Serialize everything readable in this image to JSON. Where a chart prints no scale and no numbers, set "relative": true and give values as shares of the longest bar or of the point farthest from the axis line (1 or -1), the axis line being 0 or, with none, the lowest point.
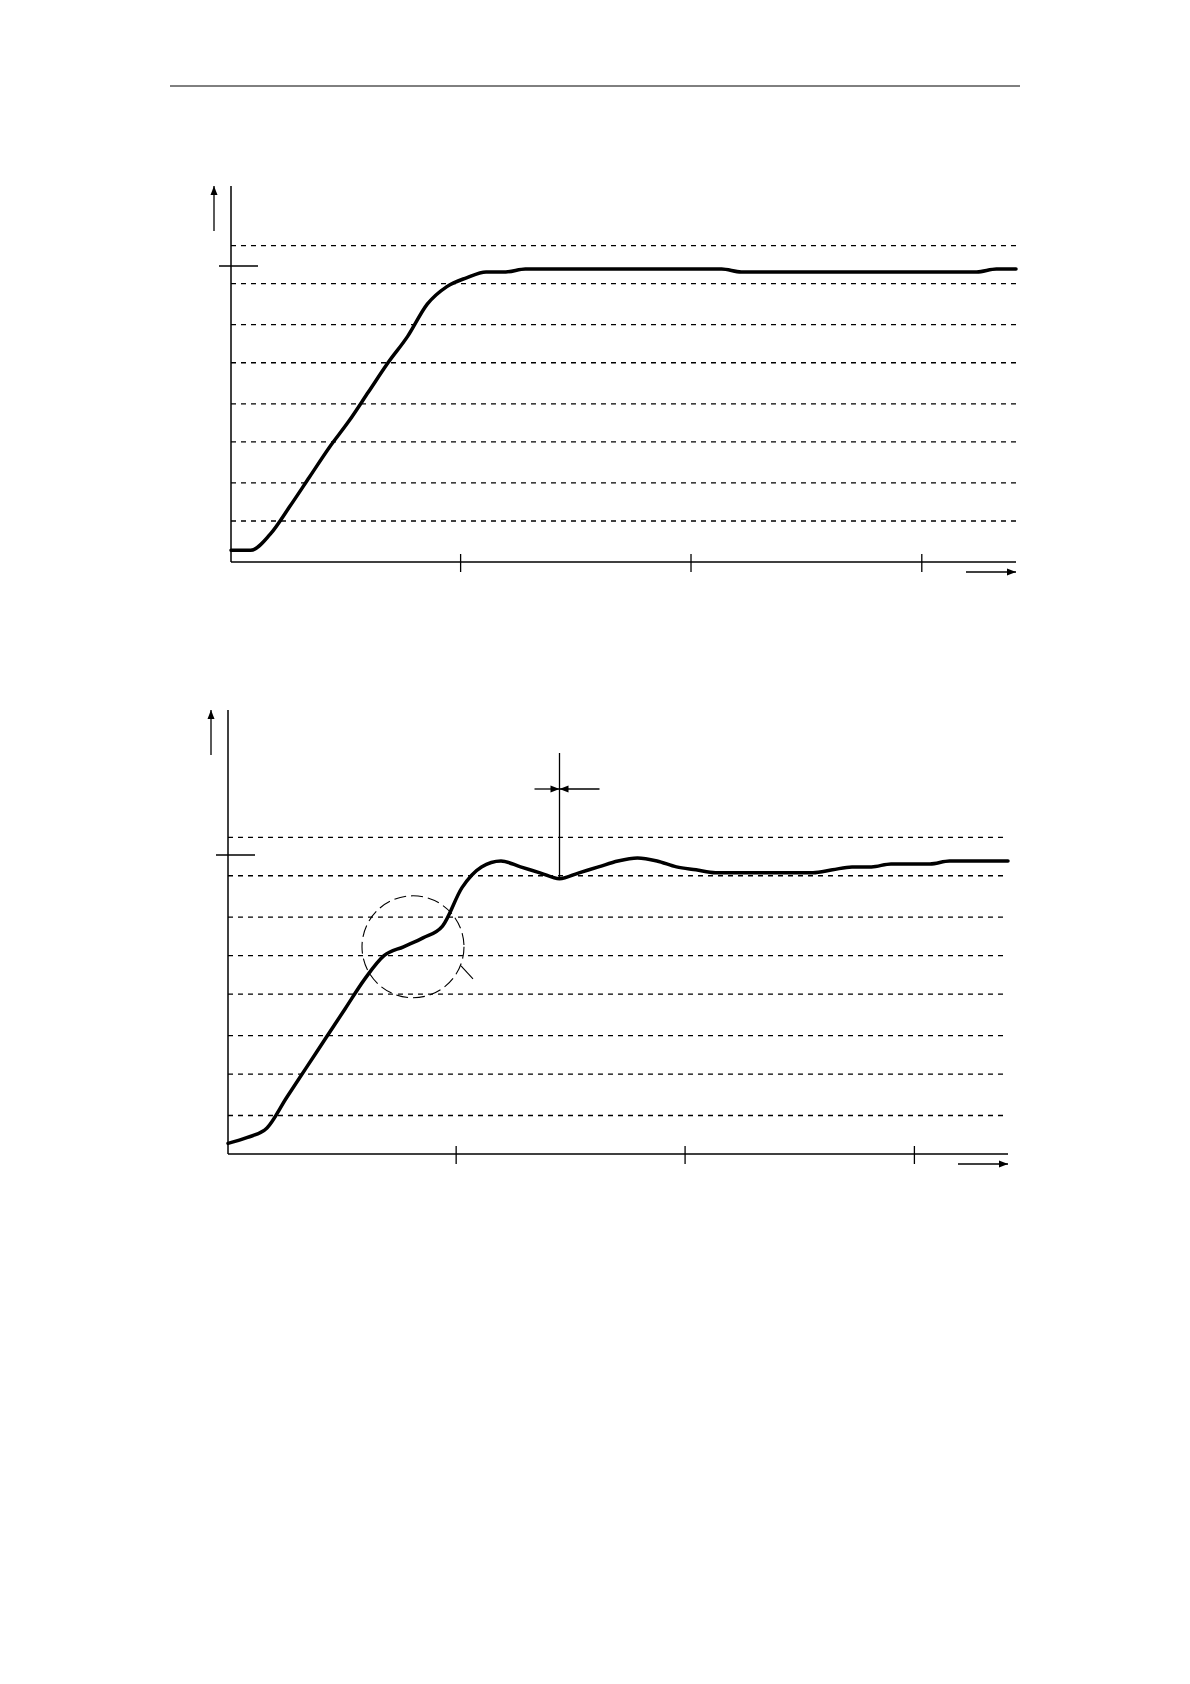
{
  "chart_data": [
    {
      "type": "line",
      "relative": true,
      "line_style": "solid",
      "categories": [
        null,
        null,
        null,
        null,
        null,
        null,
        null,
        null,
        null,
        null,
        null,
        null,
        null,
        null,
        null,
        null,
        null,
        null,
        null,
        null,
        null,
        null,
        null,
        null,
        null,
        null,
        null,
        null,
        null,
        null,
        null,
        null,
        null,
        null,
        null,
        null,
        null,
        null,
        null,
        null,
        null
      ],
      "series": [
        {
          "color": "#000000",
          "values": [
            0.04,
            0.04,
            0.095,
            0.19,
            0.29,
            0.39,
            0.48,
            0.58,
            0.68,
            0.77,
            0.88,
            0.94,
            0.97,
            0.99,
            0.99,
            1,
            1,
            1,
            1,
            1,
            1,
            1,
            1,
            1,
            1,
            1,
            0.99,
            0.99,
            0.99,
            0.99,
            0.99,
            0.99,
            0.99,
            0.99,
            0.99,
            0.99,
            0.99,
            0.99,
            0.99,
            1,
            1
          ]
        }
      ],
      "ref_lines": [
        {
          "axis": "y",
          "value": 1.08,
          "line_style": "dashed",
          "color": "#000000"
        },
        {
          "axis": "y",
          "value": 0.95,
          "line_style": "dashed",
          "color": "#000000"
        },
        {
          "axis": "y",
          "value": 0.81,
          "line_style": "dashed",
          "color": "#000000"
        },
        {
          "axis": "y",
          "value": 0.68,
          "line_style": "dashed",
          "color": "#000000"
        },
        {
          "axis": "y",
          "value": 0.54,
          "line_style": "dashed",
          "color": "#000000"
        },
        {
          "axis": "y",
          "value": 0.41,
          "line_style": "dashed",
          "color": "#000000"
        },
        {
          "axis": "y",
          "value": 0.27,
          "line_style": "dashed",
          "color": "#000000"
        },
        {
          "axis": "y",
          "value": 0.14,
          "line_style": "dashed",
          "color": "#000000"
        }
      ]
    },
    {
      "type": "line",
      "relative": true,
      "line_style": "solid",
      "categories": [
        null,
        null,
        null,
        null,
        null,
        null,
        null,
        null,
        null,
        null,
        null,
        null,
        null,
        null,
        null,
        null,
        null,
        null,
        null,
        null,
        null,
        null,
        null,
        null,
        null,
        null,
        null,
        null,
        null,
        null,
        null,
        null,
        null,
        null,
        null,
        null,
        null,
        null,
        null,
        null,
        null
      ],
      "series": [
        {
          "color": "#000000",
          "values": [
            0.036,
            0.056,
            0.088,
            0.19,
            0.29,
            0.39,
            0.49,
            0.59,
            0.67,
            0.7,
            0.73,
            0.77,
            0.9,
            0.97,
            0.99,
            0.97,
            0.95,
            0.93,
            0.95,
            0.97,
            0.99,
            1,
            0.99,
            0.97,
            0.96,
            0.95,
            0.95,
            0.95,
            0.95,
            0.95,
            0.95,
            0.96,
            0.97,
            0.97,
            0.98,
            0.98,
            0.98,
            0.99,
            0.99,
            0.99,
            0.99
          ]
        }
      ],
      "ref_lines": [
        {
          "axis": "y",
          "value": 1.07,
          "line_style": "dashed",
          "color": "#000000"
        },
        {
          "axis": "y",
          "value": 0.94,
          "line_style": "dashed",
          "color": "#000000"
        },
        {
          "axis": "y",
          "value": 0.8,
          "line_style": "dashed",
          "color": "#000000"
        },
        {
          "axis": "y",
          "value": 0.67,
          "line_style": "dashed",
          "color": "#000000"
        },
        {
          "axis": "y",
          "value": 0.54,
          "line_style": "dashed",
          "color": "#000000"
        },
        {
          "axis": "y",
          "value": 0.4,
          "line_style": "dashed",
          "color": "#000000"
        },
        {
          "axis": "y",
          "value": 0.27,
          "line_style": "dashed",
          "color": "#000000"
        },
        {
          "axis": "y",
          "value": 0.13,
          "line_style": "dashed",
          "color": "#000000"
        }
      ]
    }
  ]
}
